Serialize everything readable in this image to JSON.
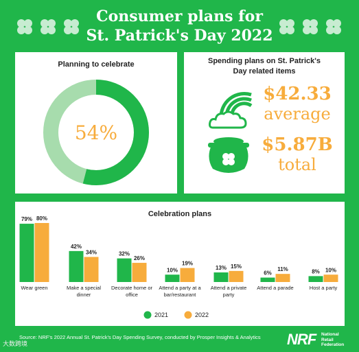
{
  "header": {
    "title_line1": "Consumer plans for",
    "title_line2": "St. Patrick's Day 2022"
  },
  "planning": {
    "heading": "Planning to celebrate",
    "percent_label": "54%",
    "percent": 54,
    "colors": {
      "main": "#20b64a",
      "rest": "#a7dcad",
      "label": "#f7ac3c"
    }
  },
  "spending": {
    "heading_line1": "Spending plans on St. Patrick's",
    "heading_line2": "Day related items",
    "average_amount": "$42.33",
    "average_label": "average",
    "total_amount": "$5.87B",
    "total_label": "total"
  },
  "chart_data": {
    "type": "bar",
    "title": "Celebration plans",
    "categories": [
      [
        "Wear green"
      ],
      [
        "Make a special",
        "dinner"
      ],
      [
        "Decorate home or",
        "office"
      ],
      [
        "Attend a party at a",
        "bar/restaurant"
      ],
      [
        "Attend a private",
        "party"
      ],
      [
        "Attend a parade"
      ],
      [
        "Host a party"
      ]
    ],
    "series": [
      {
        "name": "2021",
        "color": "#20b64a",
        "values": [
          79,
          42,
          32,
          10,
          13,
          6,
          8
        ]
      },
      {
        "name": "2022",
        "color": "#f7ac3c",
        "values": [
          80,
          34,
          26,
          19,
          15,
          11,
          10
        ]
      }
    ],
    "ylim": [
      0,
      80
    ],
    "legend": "bottom-center",
    "value_suffix": "%"
  },
  "footer": {
    "source": "Source: NRF's 2022 Annual St. Patrick's Day Spending Survey, conducted by Prosper Insights & Analytics",
    "logo": "NRF",
    "logo_sub": [
      "National",
      "Retail",
      "Federation"
    ],
    "watermark": "大数跨境"
  }
}
